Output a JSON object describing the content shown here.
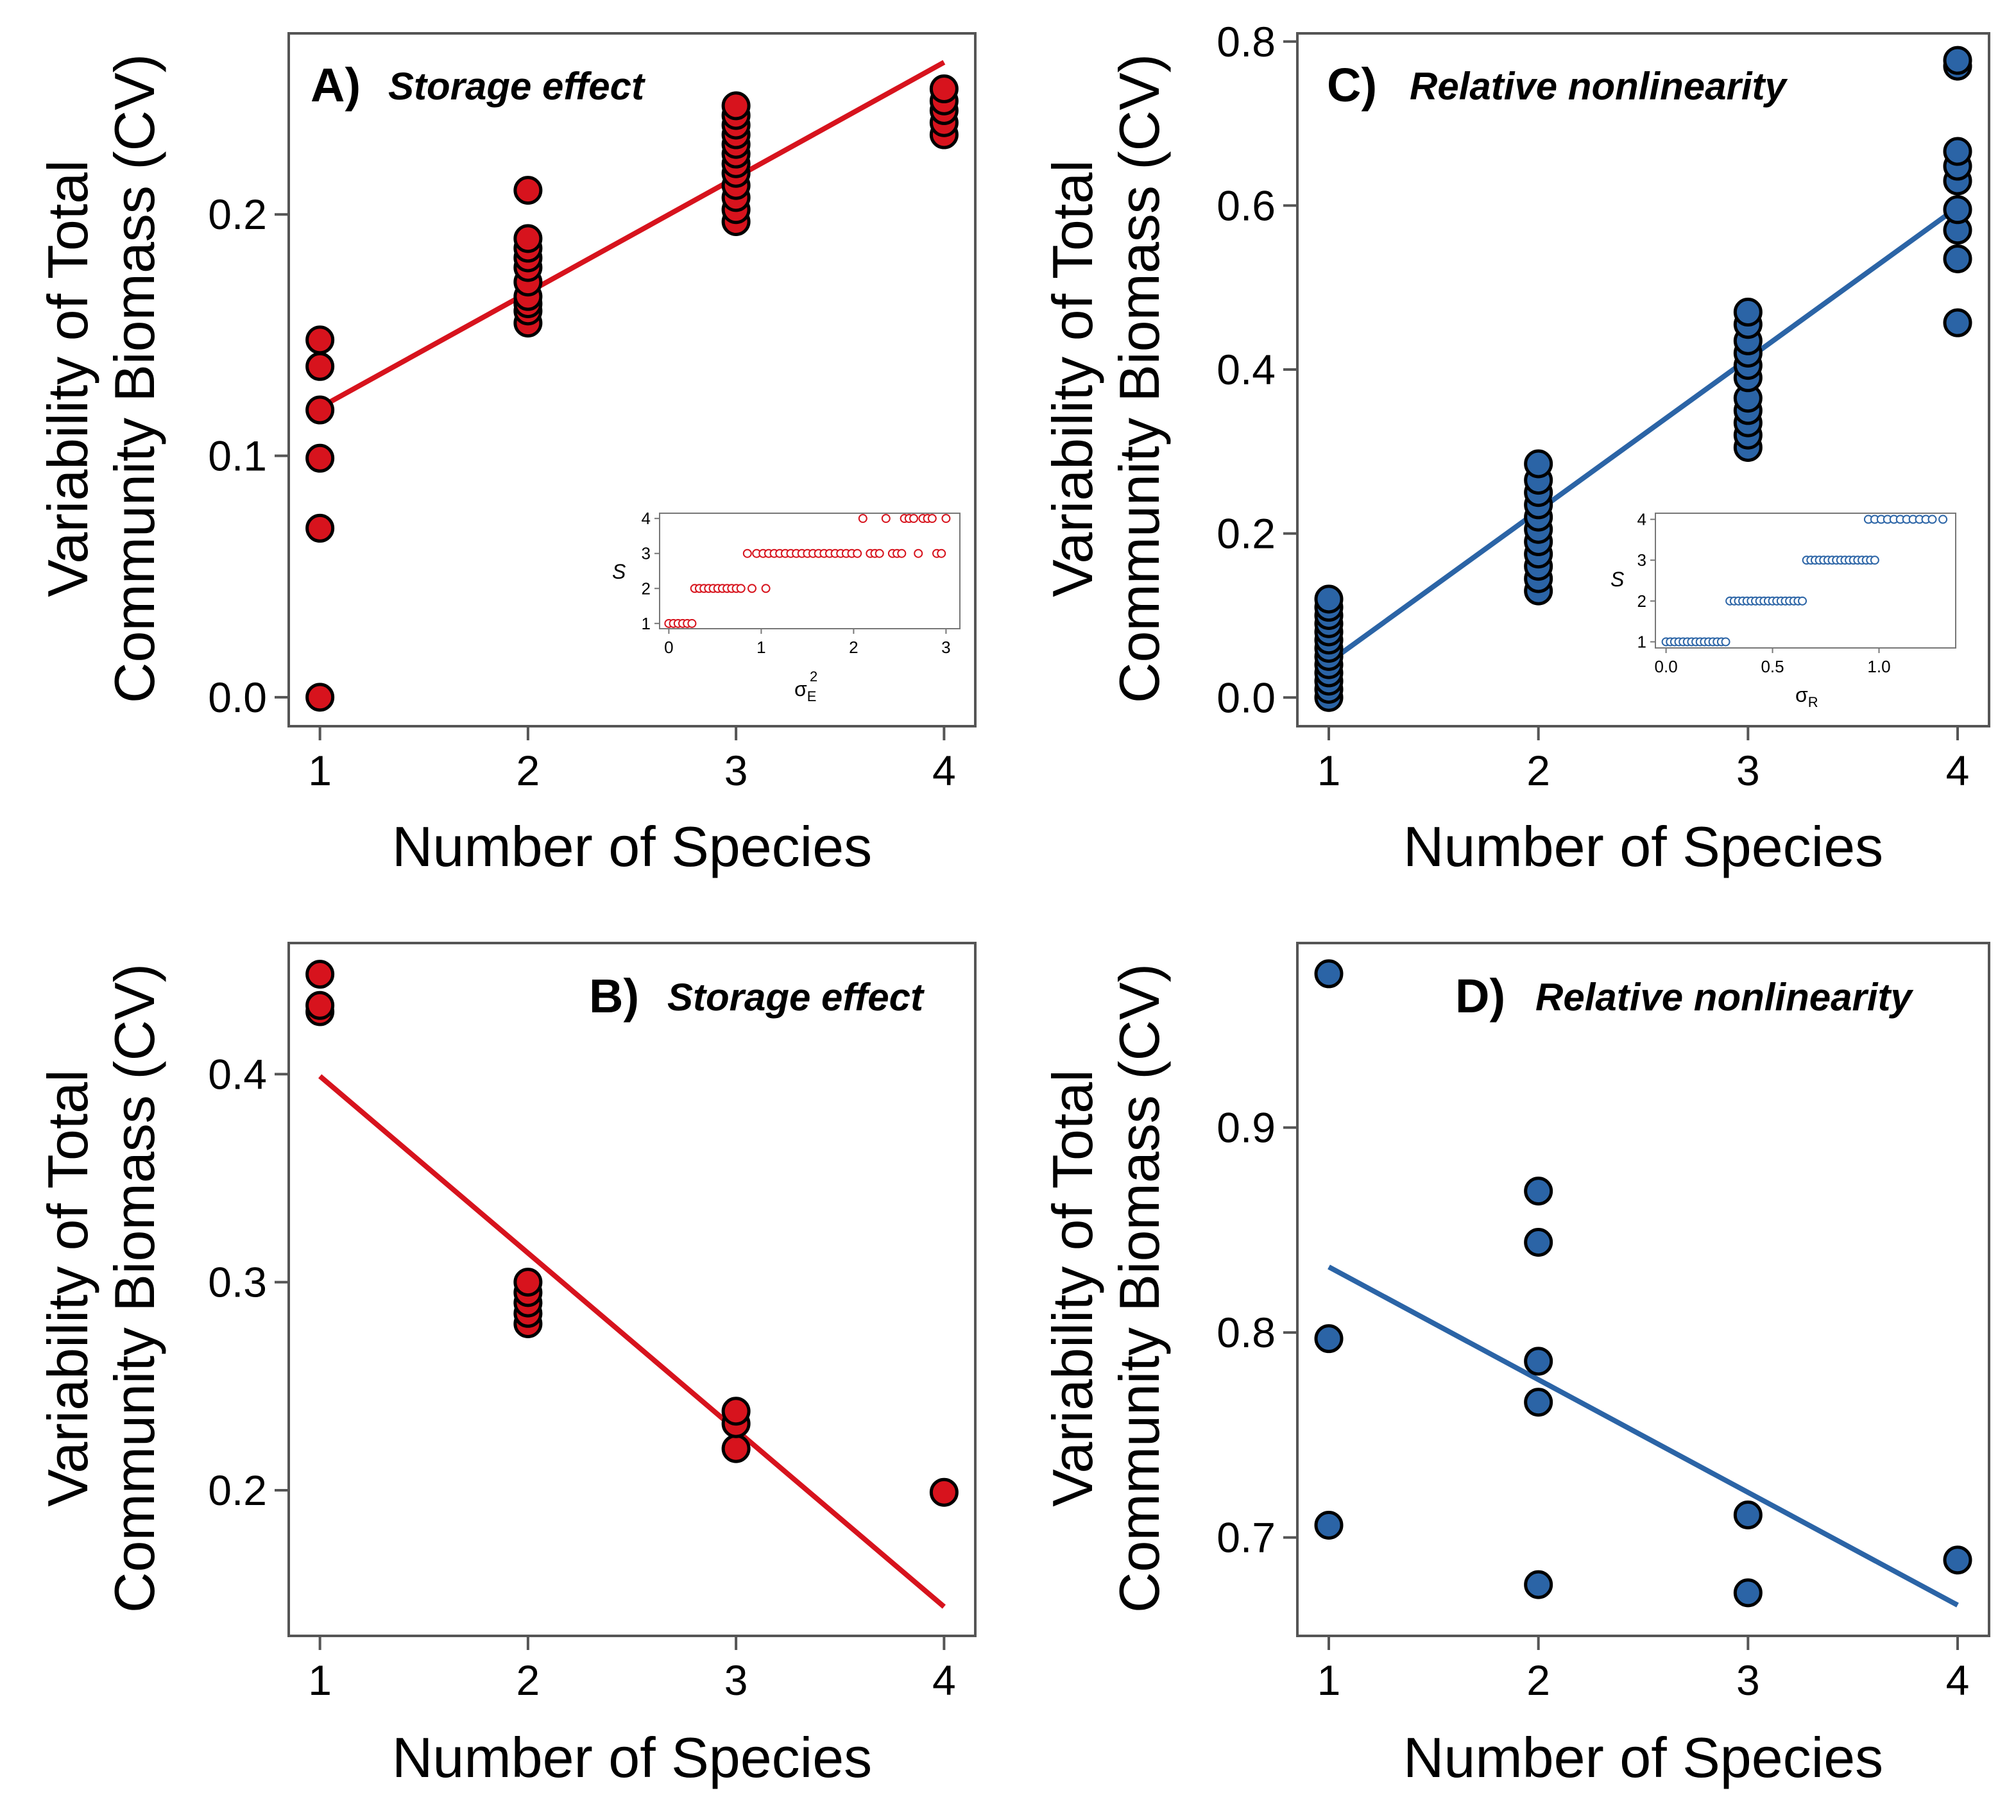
{
  "figure": {
    "common": {
      "xlabel": "Number of Species",
      "ylabel_line1": "Variability of Total",
      "ylabel_line2": "Community Biomass (CV)"
    }
  },
  "colors": {
    "storage": "#d7131d",
    "nonlinearity": "#2b64a6",
    "axis": "#555555",
    "marker_edge": "#000000"
  },
  "chart_data": [
    {
      "id": "A",
      "type": "scatter",
      "letter": "A)",
      "title": "Storage effect",
      "xlabel": "Number of Species",
      "ylabel": "Variability of Total Community Biomass (CV)",
      "xlim": [
        0.85,
        4.15
      ],
      "ylim": [
        -0.012,
        0.275
      ],
      "xticks": [
        1,
        2,
        3,
        4
      ],
      "yticks": [
        0.0,
        0.1,
        0.2
      ],
      "ytick_labels": [
        "0.0",
        "0.1",
        "0.2"
      ],
      "color": "#d7131d",
      "points": [
        [
          1,
          0.0
        ],
        [
          1,
          0.07
        ],
        [
          1,
          0.099
        ],
        [
          1,
          0.119
        ],
        [
          1,
          0.137
        ],
        [
          1,
          0.148
        ],
        [
          2,
          0.155
        ],
        [
          2,
          0.16
        ],
        [
          2,
          0.163
        ],
        [
          2,
          0.166
        ],
        [
          2,
          0.172
        ],
        [
          2,
          0.178
        ],
        [
          2,
          0.182
        ],
        [
          2,
          0.186
        ],
        [
          2,
          0.19
        ],
        [
          2,
          0.21
        ],
        [
          3,
          0.197
        ],
        [
          3,
          0.202
        ],
        [
          3,
          0.207
        ],
        [
          3,
          0.212
        ],
        [
          3,
          0.217
        ],
        [
          3,
          0.221
        ],
        [
          3,
          0.225
        ],
        [
          3,
          0.229
        ],
        [
          3,
          0.233
        ],
        [
          3,
          0.237
        ],
        [
          3,
          0.241
        ],
        [
          3,
          0.245
        ],
        [
          4,
          0.233
        ],
        [
          4,
          0.238
        ],
        [
          4,
          0.243
        ],
        [
          4,
          0.247
        ],
        [
          4,
          0.252
        ]
      ],
      "fit": {
        "x": [
          1,
          4
        ],
        "y": [
          0.12,
          0.263
        ]
      },
      "inset": {
        "type": "scatter",
        "xlabel": "σ",
        "xlabel_sup": "2",
        "xlabel_sub": "E",
        "ylabel": "S",
        "xlim": [
          -0.1,
          3.15
        ],
        "ylim": [
          0.85,
          4.15
        ],
        "xticks": [
          0,
          1,
          2,
          3
        ],
        "xtick_labels": [
          "0",
          "1",
          "2",
          "3"
        ],
        "yticks": [
          1,
          2,
          3,
          4
        ],
        "points": [
          [
            0.0,
            1
          ],
          [
            0.05,
            1
          ],
          [
            0.1,
            1
          ],
          [
            0.15,
            1
          ],
          [
            0.2,
            1
          ],
          [
            0.25,
            1
          ],
          [
            0.28,
            2
          ],
          [
            0.33,
            2
          ],
          [
            0.38,
            2
          ],
          [
            0.43,
            2
          ],
          [
            0.48,
            2
          ],
          [
            0.53,
            2
          ],
          [
            0.58,
            2
          ],
          [
            0.63,
            2
          ],
          [
            0.68,
            2
          ],
          [
            0.73,
            2
          ],
          [
            0.78,
            2
          ],
          [
            0.9,
            2
          ],
          [
            1.05,
            2
          ],
          [
            0.85,
            3
          ],
          [
            0.95,
            3
          ],
          [
            1.02,
            3
          ],
          [
            1.08,
            3
          ],
          [
            1.14,
            3
          ],
          [
            1.2,
            3
          ],
          [
            1.26,
            3
          ],
          [
            1.32,
            3
          ],
          [
            1.38,
            3
          ],
          [
            1.44,
            3
          ],
          [
            1.5,
            3
          ],
          [
            1.56,
            3
          ],
          [
            1.62,
            3
          ],
          [
            1.68,
            3
          ],
          [
            1.74,
            3
          ],
          [
            1.8,
            3
          ],
          [
            1.86,
            3
          ],
          [
            1.92,
            3
          ],
          [
            1.98,
            3
          ],
          [
            2.04,
            3
          ],
          [
            2.18,
            3
          ],
          [
            2.23,
            3
          ],
          [
            2.28,
            3
          ],
          [
            2.42,
            3
          ],
          [
            2.47,
            3
          ],
          [
            2.52,
            3
          ],
          [
            2.7,
            3
          ],
          [
            2.9,
            3
          ],
          [
            2.95,
            3
          ],
          [
            2.1,
            4
          ],
          [
            2.35,
            4
          ],
          [
            2.55,
            4
          ],
          [
            2.6,
            4
          ],
          [
            2.65,
            4
          ],
          [
            2.75,
            4
          ],
          [
            2.8,
            4
          ],
          [
            2.85,
            4
          ],
          [
            3.0,
            4
          ]
        ]
      }
    },
    {
      "id": "C",
      "type": "scatter",
      "letter": "C)",
      "title": "Relative nonlinearity",
      "xlabel": "Number of Species",
      "ylabel": "Variability of Total Community Biomass (CV)",
      "xlim": [
        0.85,
        4.15
      ],
      "ylim": [
        -0.035,
        0.81
      ],
      "xticks": [
        1,
        2,
        3,
        4
      ],
      "yticks": [
        0.0,
        0.2,
        0.4,
        0.6,
        0.8
      ],
      "ytick_labels": [
        "0.0",
        "0.2",
        "0.4",
        "0.6",
        "0.8"
      ],
      "color": "#2b64a6",
      "points": [
        [
          1,
          0.0
        ],
        [
          1,
          0.01
        ],
        [
          1,
          0.02
        ],
        [
          1,
          0.03
        ],
        [
          1,
          0.04
        ],
        [
          1,
          0.05
        ],
        [
          1,
          0.06
        ],
        [
          1,
          0.07
        ],
        [
          1,
          0.08
        ],
        [
          1,
          0.09
        ],
        [
          1,
          0.1
        ],
        [
          1,
          0.11
        ],
        [
          1,
          0.12
        ],
        [
          2,
          0.13
        ],
        [
          2,
          0.145
        ],
        [
          2,
          0.16
        ],
        [
          2,
          0.175
        ],
        [
          2,
          0.19
        ],
        [
          2,
          0.205
        ],
        [
          2,
          0.22
        ],
        [
          2,
          0.235
        ],
        [
          2,
          0.25
        ],
        [
          2,
          0.265
        ],
        [
          2,
          0.285
        ],
        [
          3,
          0.305
        ],
        [
          3,
          0.32
        ],
        [
          3,
          0.335
        ],
        [
          3,
          0.35
        ],
        [
          3,
          0.365
        ],
        [
          3,
          0.39
        ],
        [
          3,
          0.405
        ],
        [
          3,
          0.42
        ],
        [
          3,
          0.435
        ],
        [
          3,
          0.455
        ],
        [
          3,
          0.47
        ],
        [
          4,
          0.457
        ],
        [
          4,
          0.535
        ],
        [
          4,
          0.57
        ],
        [
          4,
          0.595
        ],
        [
          4,
          0.63
        ],
        [
          4,
          0.648
        ],
        [
          4,
          0.666
        ],
        [
          4,
          0.77
        ],
        [
          4,
          0.777
        ]
      ],
      "fit": {
        "x": [
          1,
          4
        ],
        "y": [
          0.043,
          0.598
        ]
      },
      "inset": {
        "type": "scatter",
        "xlabel": "σ",
        "xlabel_sup": "",
        "xlabel_sub": "R",
        "ylabel": "S",
        "xlim": [
          -0.05,
          1.36
        ],
        "ylim": [
          0.85,
          4.15
        ],
        "xticks": [
          0.0,
          0.5,
          1.0
        ],
        "xtick_labels": [
          "0.0",
          "0.5",
          "1.0"
        ],
        "yticks": [
          1,
          2,
          3,
          4
        ],
        "points": [
          [
            0.0,
            1
          ],
          [
            0.02,
            1
          ],
          [
            0.04,
            1
          ],
          [
            0.06,
            1
          ],
          [
            0.08,
            1
          ],
          [
            0.1,
            1
          ],
          [
            0.12,
            1
          ],
          [
            0.14,
            1
          ],
          [
            0.16,
            1
          ],
          [
            0.18,
            1
          ],
          [
            0.2,
            1
          ],
          [
            0.22,
            1
          ],
          [
            0.24,
            1
          ],
          [
            0.26,
            1
          ],
          [
            0.28,
            1
          ],
          [
            0.3,
            2
          ],
          [
            0.32,
            2
          ],
          [
            0.34,
            2
          ],
          [
            0.36,
            2
          ],
          [
            0.38,
            2
          ],
          [
            0.4,
            2
          ],
          [
            0.42,
            2
          ],
          [
            0.44,
            2
          ],
          [
            0.46,
            2
          ],
          [
            0.48,
            2
          ],
          [
            0.5,
            2
          ],
          [
            0.52,
            2
          ],
          [
            0.54,
            2
          ],
          [
            0.56,
            2
          ],
          [
            0.58,
            2
          ],
          [
            0.6,
            2
          ],
          [
            0.62,
            2
          ],
          [
            0.64,
            2
          ],
          [
            0.66,
            3
          ],
          [
            0.68,
            3
          ],
          [
            0.7,
            3
          ],
          [
            0.72,
            3
          ],
          [
            0.74,
            3
          ],
          [
            0.76,
            3
          ],
          [
            0.78,
            3
          ],
          [
            0.8,
            3
          ],
          [
            0.82,
            3
          ],
          [
            0.84,
            3
          ],
          [
            0.86,
            3
          ],
          [
            0.88,
            3
          ],
          [
            0.9,
            3
          ],
          [
            0.92,
            3
          ],
          [
            0.94,
            3
          ],
          [
            0.96,
            3
          ],
          [
            0.98,
            3
          ],
          [
            0.95,
            4
          ],
          [
            0.98,
            4
          ],
          [
            1.01,
            4
          ],
          [
            1.04,
            4
          ],
          [
            1.07,
            4
          ],
          [
            1.1,
            4
          ],
          [
            1.13,
            4
          ],
          [
            1.16,
            4
          ],
          [
            1.19,
            4
          ],
          [
            1.22,
            4
          ],
          [
            1.25,
            4
          ],
          [
            1.3,
            4
          ]
        ]
      }
    },
    {
      "id": "B",
      "type": "scatter",
      "letter": "B)",
      "title": "Storage effect",
      "xlabel": "Number of Species",
      "ylabel": "Variability of Total Community Biomass (CV)",
      "xlim": [
        0.85,
        4.15
      ],
      "ylim": [
        0.13,
        0.463
      ],
      "xticks": [
        1,
        2,
        3,
        4
      ],
      "yticks": [
        0.2,
        0.3,
        0.4
      ],
      "ytick_labels": [
        "0.2",
        "0.3",
        "0.4"
      ],
      "color": "#d7131d",
      "points": [
        [
          1,
          0.43
        ],
        [
          1,
          0.433
        ],
        [
          1,
          0.448
        ],
        [
          2,
          0.28
        ],
        [
          2,
          0.285
        ],
        [
          2,
          0.29
        ],
        [
          2,
          0.295
        ],
        [
          2,
          0.3
        ],
        [
          3,
          0.22
        ],
        [
          3,
          0.232
        ],
        [
          3,
          0.238
        ],
        [
          4,
          0.199
        ]
      ],
      "fit": {
        "x": [
          1,
          4
        ],
        "y": [
          0.399,
          0.144
        ]
      }
    },
    {
      "id": "D",
      "type": "scatter",
      "letter": "D)",
      "title": "Relative nonlinearity",
      "xlabel": "Number of Species",
      "ylabel": "Variability of Total Community Biomass (CV)",
      "xlim": [
        0.85,
        4.15
      ],
      "ylim": [
        0.652,
        0.99
      ],
      "xticks": [
        1,
        2,
        3,
        4
      ],
      "yticks": [
        0.7,
        0.8,
        0.9
      ],
      "ytick_labels": [
        "0.7",
        "0.8",
        "0.9"
      ],
      "color": "#2b64a6",
      "points": [
        [
          1,
          0.975
        ],
        [
          1,
          0.797
        ],
        [
          1,
          0.706
        ],
        [
          2,
          0.869
        ],
        [
          2,
          0.844
        ],
        [
          2,
          0.786
        ],
        [
          2,
          0.766
        ],
        [
          2,
          0.677
        ],
        [
          3,
          0.711
        ],
        [
          3,
          0.673
        ],
        [
          4,
          0.689
        ]
      ],
      "fit": {
        "x": [
          1,
          4
        ],
        "y": [
          0.832,
          0.667
        ]
      }
    }
  ]
}
